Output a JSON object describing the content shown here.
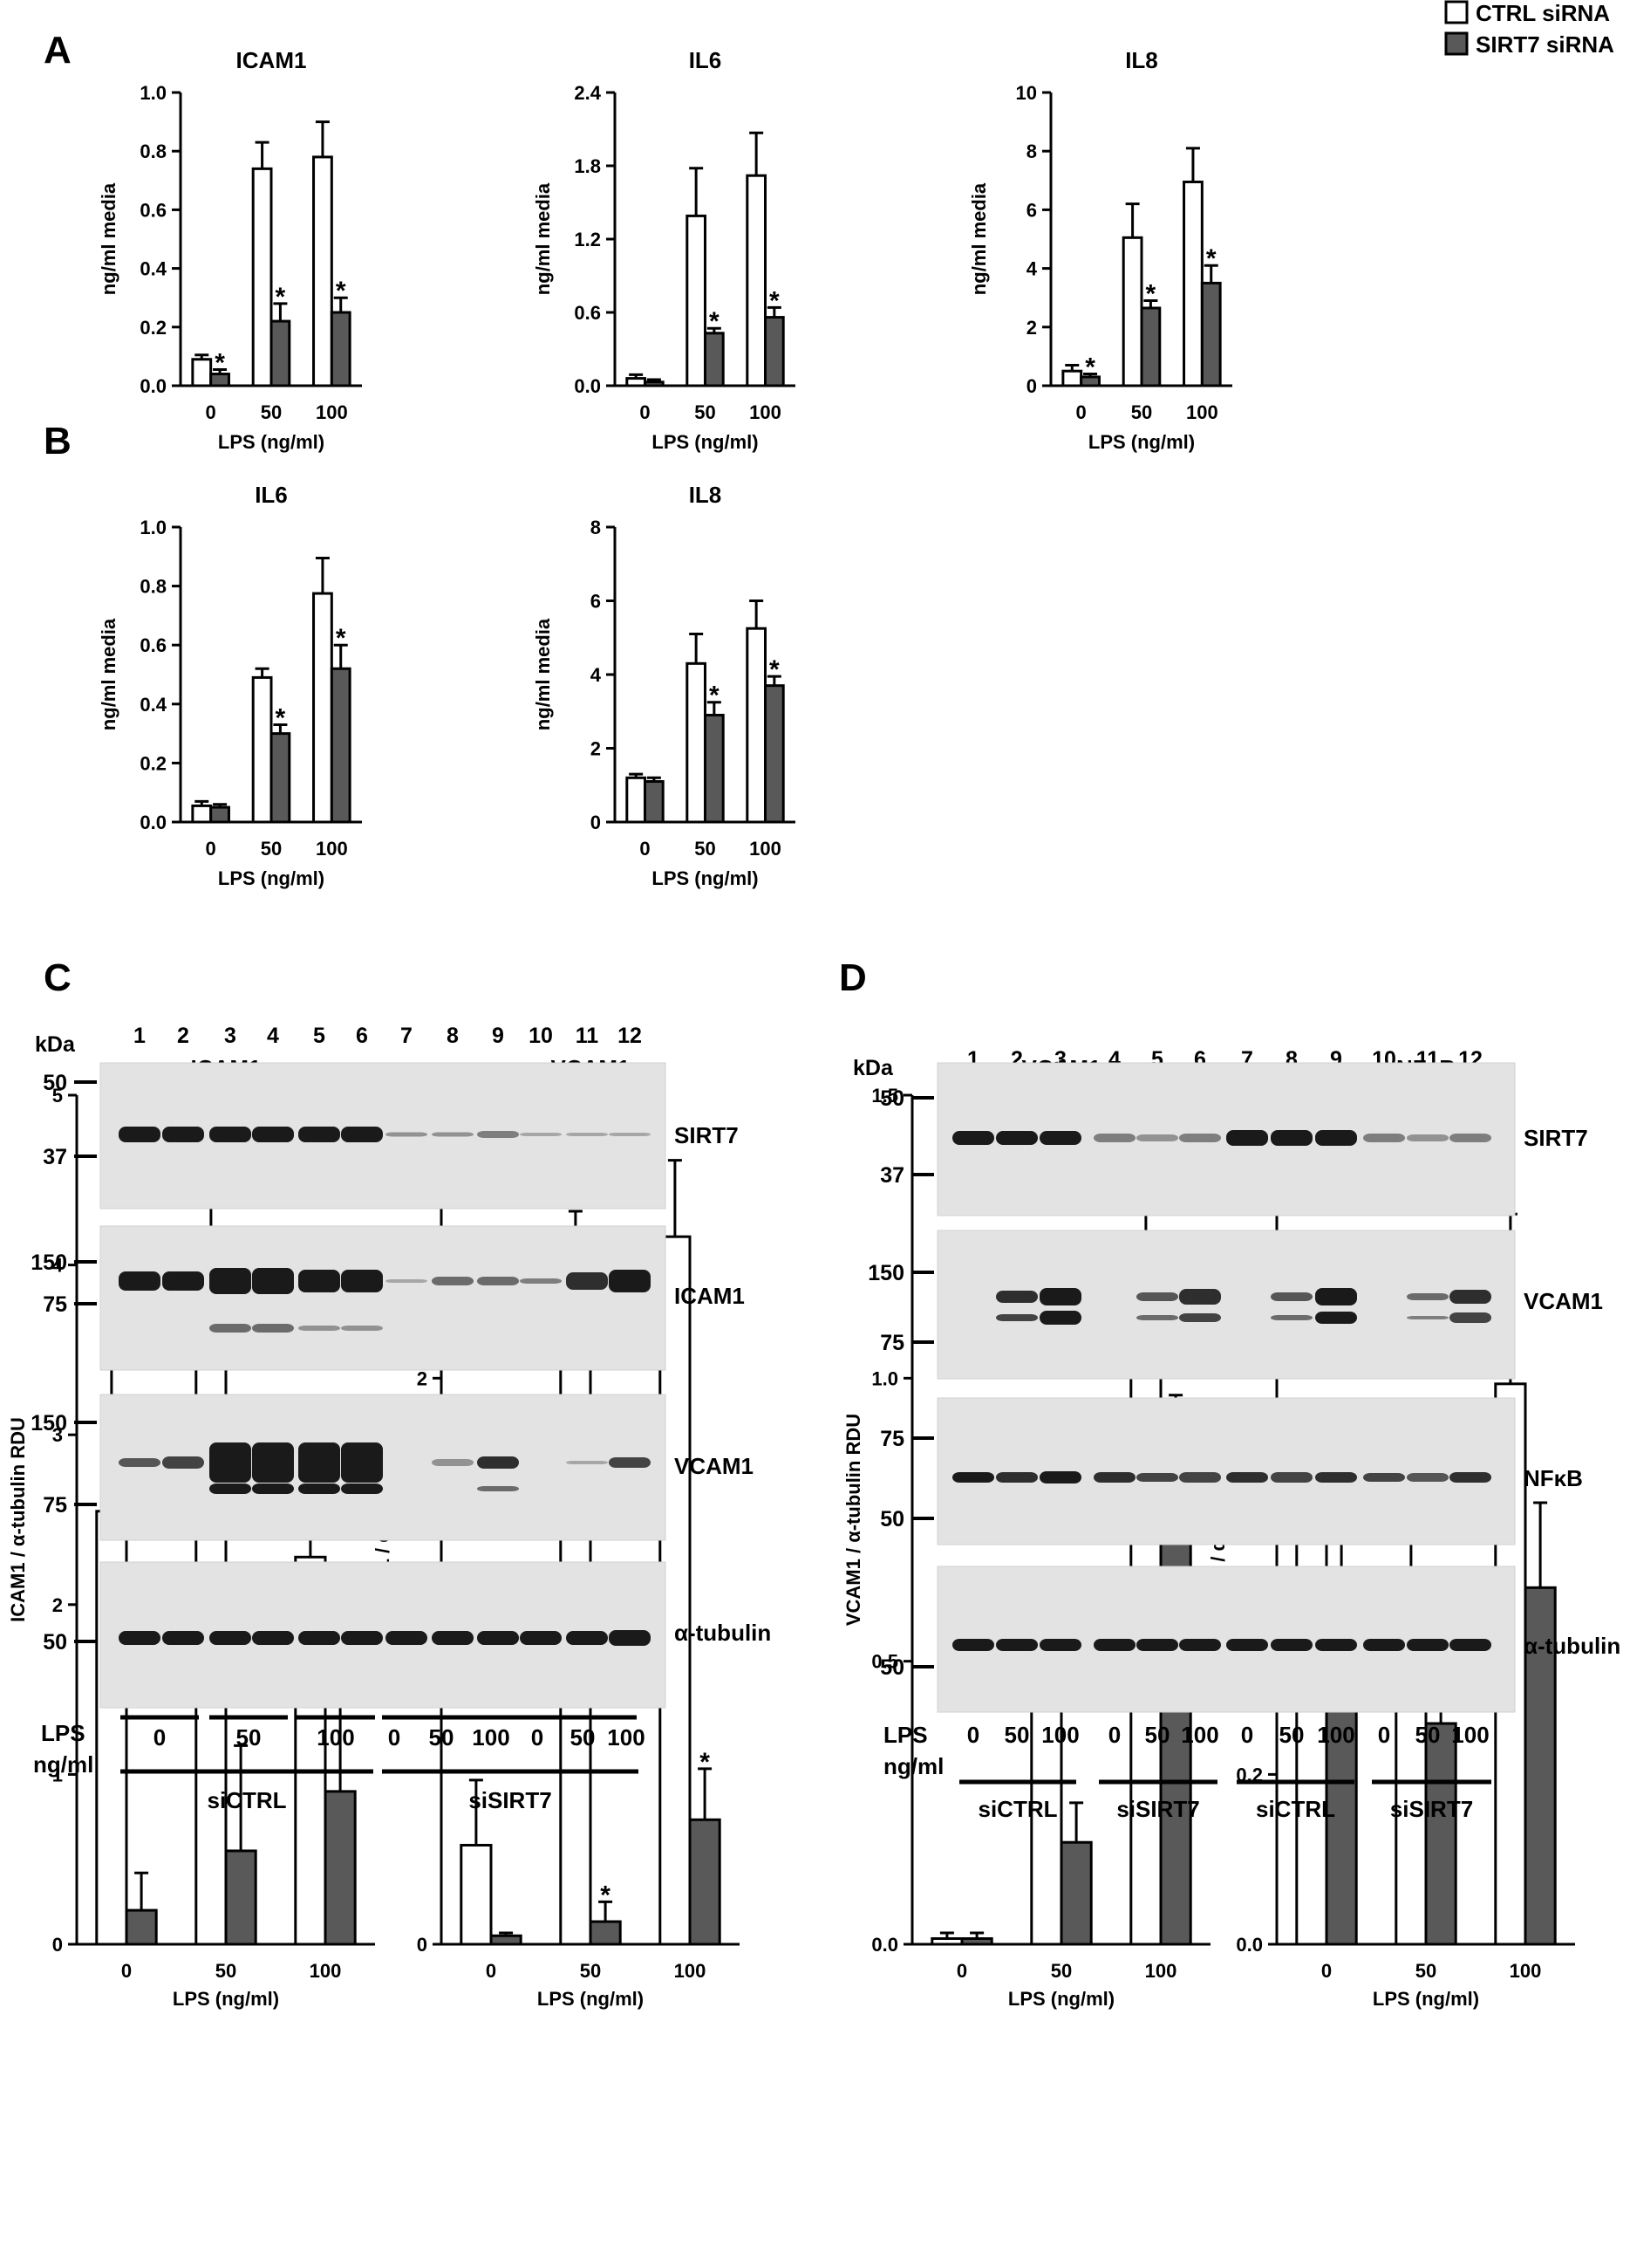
{
  "legend": {
    "series": [
      {
        "name": "CTRL siRNA",
        "color": "#ffffff"
      },
      {
        "name": "SIRT7 siRNA",
        "color": "#595959"
      }
    ],
    "placement": "top-right"
  },
  "panels": {
    "A": "A",
    "B": "B",
    "C": "C",
    "D": "D"
  },
  "blot_c": {
    "kda": "kDa",
    "lanes": [
      "1",
      "2",
      "3",
      "4",
      "5",
      "6",
      "7",
      "8",
      "9",
      "10",
      "11",
      "12"
    ],
    "strips": [
      {
        "label": "SIRT7",
        "markers": [
          "50",
          "37"
        ]
      },
      {
        "label": "ICAM1",
        "markers": [
          "150",
          "75"
        ]
      },
      {
        "label": "VCAM1",
        "markers": [
          "150",
          "75"
        ]
      },
      {
        "label": "α-tubulin",
        "markers": [
          "50"
        ]
      }
    ],
    "lps_label": "LPS",
    "unit_label": "ng/ml",
    "lps_groups": [
      "0",
      "50",
      "100"
    ],
    "lps_doses": [
      "0",
      "50",
      "100",
      "0",
      "50",
      "100"
    ],
    "groups": [
      "siCTRL",
      "siSIRT7"
    ]
  },
  "blot_d": {
    "kda": "kDa",
    "lanes": [
      "1",
      "2",
      "3",
      "4",
      "5",
      "6",
      "7",
      "8",
      "9",
      "10",
      "11",
      "12"
    ],
    "strips": [
      {
        "label": "SIRT7",
        "markers": [
          "50",
          "37"
        ]
      },
      {
        "label": "VCAM1",
        "markers": [
          "150",
          "75"
        ]
      },
      {
        "label": "NFκB",
        "markers": [
          "75",
          "50"
        ]
      },
      {
        "label": "α-tubulin",
        "markers": [
          "50"
        ]
      }
    ],
    "lps_label": "LPS",
    "unit_label": "ng/ml",
    "lps_doses": [
      "0",
      "50",
      "100",
      "0",
      "50",
      "100",
      "0",
      "50",
      "100",
      "0",
      "50",
      "100"
    ],
    "groups": [
      "siCTRL",
      "siSIRT7",
      "siCTRL",
      "siSIRT7"
    ]
  },
  "chart_data": [
    {
      "type": "bar",
      "panel": "A",
      "title": "ICAM1",
      "xlabel": "LPS (ng/ml)",
      "ylabel": "ng/ml media",
      "categories": [
        "0",
        "50",
        "100"
      ],
      "ylim": [
        0,
        1.0
      ],
      "yticks": [
        "0.0",
        "0.2",
        "0.4",
        "0.6",
        "0.8",
        "1.0"
      ],
      "series": [
        {
          "name": "CTRL siRNA",
          "values": [
            0.09,
            0.74,
            0.78
          ],
          "errors": [
            0.015,
            0.09,
            0.12
          ]
        },
        {
          "name": "SIRT7 siRNA",
          "values": [
            0.04,
            0.22,
            0.25
          ],
          "errors": [
            0.015,
            0.06,
            0.05
          ]
        }
      ],
      "significance": [
        [
          false,
          false,
          false
        ],
        [
          true,
          true,
          true
        ]
      ]
    },
    {
      "type": "bar",
      "panel": "A",
      "title": "IL6",
      "xlabel": "LPS (ng/ml)",
      "ylabel": "ng/ml media",
      "categories": [
        "0",
        "50",
        "100"
      ],
      "ylim": [
        0,
        2.4
      ],
      "yticks": [
        "0.0",
        "0.6",
        "1.2",
        "1.8",
        "2.4"
      ],
      "series": [
        {
          "name": "CTRL siRNA",
          "values": [
            0.06,
            1.39,
            1.72
          ],
          "errors": [
            0.03,
            0.39,
            0.35
          ]
        },
        {
          "name": "SIRT7 siRNA",
          "values": [
            0.03,
            0.43,
            0.56
          ],
          "errors": [
            0.02,
            0.04,
            0.08
          ]
        }
      ],
      "significance": [
        [
          false,
          false,
          false
        ],
        [
          false,
          true,
          true
        ]
      ]
    },
    {
      "type": "bar",
      "panel": "A",
      "title": "IL8",
      "xlabel": "LPS (ng/ml)",
      "ylabel": "ng/ml media",
      "categories": [
        "0",
        "50",
        "100"
      ],
      "ylim": [
        0,
        10
      ],
      "yticks": [
        "0",
        "2",
        "4",
        "6",
        "8",
        "10"
      ],
      "series": [
        {
          "name": "CTRL siRNA",
          "values": [
            0.5,
            5.05,
            6.95
          ],
          "errors": [
            0.2,
            1.15,
            1.15
          ]
        },
        {
          "name": "SIRT7 siRNA",
          "values": [
            0.3,
            2.65,
            3.5
          ],
          "errors": [
            0.1,
            0.25,
            0.6
          ]
        }
      ],
      "significance": [
        [
          false,
          false,
          false
        ],
        [
          true,
          true,
          true
        ]
      ]
    },
    {
      "type": "bar",
      "panel": "B",
      "title": "IL6",
      "xlabel": "LPS (ng/ml)",
      "ylabel": "ng/ml media",
      "categories": [
        "0",
        "50",
        "100"
      ],
      "ylim": [
        0,
        1.0
      ],
      "yticks": [
        "0.0",
        "0.2",
        "0.4",
        "0.6",
        "0.8",
        "1.0"
      ],
      "series": [
        {
          "name": "CTRL siRNA",
          "values": [
            0.055,
            0.49,
            0.775
          ],
          "errors": [
            0.015,
            0.03,
            0.12
          ]
        },
        {
          "name": "SIRT7 siRNA",
          "values": [
            0.05,
            0.3,
            0.52
          ],
          "errors": [
            0.01,
            0.03,
            0.08
          ]
        }
      ],
      "significance": [
        [
          false,
          false,
          false
        ],
        [
          false,
          true,
          true
        ]
      ]
    },
    {
      "type": "bar",
      "panel": "B",
      "title": "IL8",
      "xlabel": "LPS (ng/ml)",
      "ylabel": "ng/ml media",
      "categories": [
        "0",
        "50",
        "100"
      ],
      "ylim": [
        0,
        8
      ],
      "yticks": [
        "0",
        "2",
        "4",
        "6",
        "8"
      ],
      "series": [
        {
          "name": "CTRL siRNA",
          "values": [
            1.2,
            4.3,
            5.25
          ],
          "errors": [
            0.1,
            0.8,
            0.75
          ]
        },
        {
          "name": "SIRT7 siRNA",
          "values": [
            1.1,
            2.9,
            3.7
          ],
          "errors": [
            0.1,
            0.35,
            0.25
          ]
        }
      ],
      "significance": [
        [
          false,
          false,
          false
        ],
        [
          false,
          true,
          true
        ]
      ]
    },
    {
      "type": "bar",
      "panel": "C",
      "title": "ICAM1",
      "xlabel": "LPS (ng/ml)",
      "ylabel": "ICAM1 / α-tubulin RDU",
      "categories": [
        "0",
        "50",
        "100"
      ],
      "ylim": [
        0,
        5
      ],
      "yticks": [
        "0",
        "1",
        "2",
        "3",
        "4",
        "5"
      ],
      "series": [
        {
          "name": "CTRL siRNA",
          "values": [
            2.55,
            3.65,
            2.28
          ],
          "errors": [
            0.85,
            0.88,
            0.38
          ]
        },
        {
          "name": "SIRT7 siRNA",
          "values": [
            0.2,
            0.55,
            0.9
          ],
          "errors": [
            0.22,
            0.62,
            0.68
          ]
        }
      ],
      "significance": [
        [
          false,
          false,
          false
        ],
        [
          false,
          false,
          false
        ]
      ]
    },
    {
      "type": "bar",
      "panel": "C",
      "title": "VCAM1",
      "xlabel": "LPS (ng/ml)",
      "ylabel": "VCAM1 / α-tubulin RDU",
      "categories": [
        "0",
        "50",
        "100"
      ],
      "ylim": [
        0,
        3
      ],
      "yticks": [
        "0",
        "1",
        "2",
        "3"
      ],
      "series": [
        {
          "name": "CTRL siRNA",
          "values": [
            0.35,
            2.42,
            2.5
          ],
          "errors": [
            0.23,
            0.17,
            0.27
          ]
        },
        {
          "name": "SIRT7 siRNA",
          "values": [
            0.03,
            0.08,
            0.44
          ],
          "errors": [
            0.01,
            0.07,
            0.18
          ]
        }
      ],
      "significance": [
        [
          false,
          false,
          false
        ],
        [
          false,
          true,
          true
        ]
      ]
    },
    {
      "type": "bar",
      "panel": "D",
      "title": "VCAM1",
      "xlabel": "LPS (ng/ml)",
      "ylabel": "VCAM1 / α-tubulin RDU",
      "categories": [
        "0",
        "50",
        "100"
      ],
      "ylim": [
        0,
        1.5
      ],
      "yticks": [
        "0.0",
        "0.5",
        "1.0",
        "1.5"
      ],
      "series": [
        {
          "name": "CTRL siRNA",
          "values": [
            0.01,
            0.42,
            1.14
          ],
          "errors": [
            0.01,
            0.18,
            0.29
          ]
        },
        {
          "name": "SIRT7 siRNA",
          "values": [
            0.01,
            0.18,
            0.9
          ],
          "errors": [
            0.01,
            0.07,
            0.07
          ]
        }
      ],
      "significance": [
        [
          false,
          false,
          false
        ],
        [
          false,
          false,
          false
        ]
      ]
    },
    {
      "type": "bar",
      "panel": "D",
      "title": "NFκB",
      "xlabel": "LPS (ng/ml)",
      "ylabel": "NFκB / α-tubulin RDU",
      "categories": [
        "0",
        "50",
        "100"
      ],
      "ylim": [
        0,
        1.0
      ],
      "yticks": [
        "0.0",
        "0.2",
        "0.4",
        "0.6",
        "0.8",
        "1.0"
      ],
      "series": [
        {
          "name": "CTRL siRNA",
          "values": [
            0.49,
            0.4,
            0.66
          ],
          "errors": [
            0.09,
            0.08,
            0.2
          ]
        },
        {
          "name": "SIRT7 siRNA",
          "values": [
            0.37,
            0.26,
            0.42
          ],
          "errors": [
            0.18,
            0.03,
            0.1
          ]
        }
      ],
      "significance": [
        [
          false,
          false,
          false
        ],
        [
          false,
          false,
          false
        ]
      ]
    }
  ]
}
